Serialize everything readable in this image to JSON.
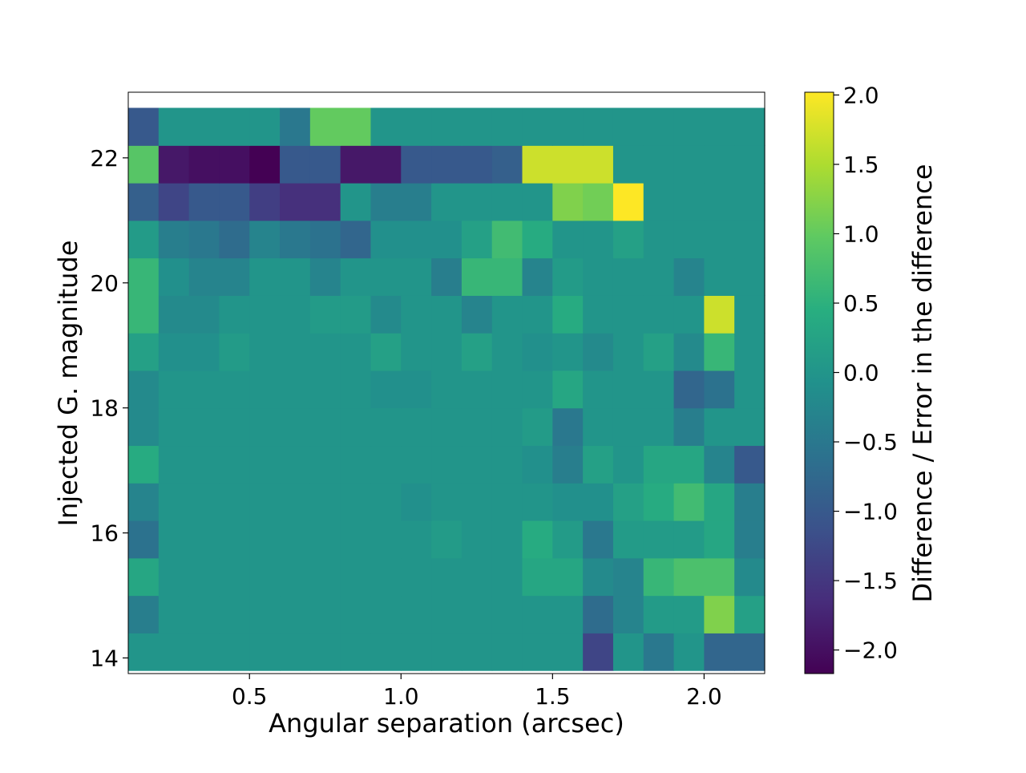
{
  "chart_data": {
    "type": "heatmap",
    "title": "",
    "xlabel": "Angular separation (arcsec)",
    "ylabel": "Injected G. magnitude",
    "colorbar_label": "Difference / Error in the difference",
    "colormap": "viridis",
    "x_edges": [
      0.1,
      0.2,
      0.3,
      0.4,
      0.5,
      0.6,
      0.7,
      0.8,
      0.9,
      1.0,
      1.1,
      1.2,
      1.3,
      1.4,
      1.5,
      1.6,
      1.7,
      1.8,
      1.9,
      2.0,
      2.1,
      2.2
    ],
    "y_edges": [
      13.8,
      14.4,
      15.0,
      15.6,
      16.2,
      16.8,
      17.4,
      18.0,
      18.6,
      19.2,
      19.8,
      20.4,
      21.0,
      21.6,
      22.2,
      22.8
    ],
    "xlim": [
      0.1,
      2.2
    ],
    "ylim": [
      13.75,
      23.05
    ],
    "x_ticks": [
      0.5,
      1.0,
      1.5,
      2.0
    ],
    "x_tick_labels": [
      "0.5",
      "1.0",
      "1.5",
      "2.0"
    ],
    "y_ticks": [
      14,
      16,
      18,
      20,
      22
    ],
    "y_tick_labels": [
      "14",
      "16",
      "18",
      "20",
      "22"
    ],
    "color_range": [
      -2.17,
      2.02
    ],
    "colorbar_ticks": [
      -2.0,
      -1.5,
      -1.0,
      -0.5,
      0.0,
      0.5,
      1.0,
      1.5,
      2.0
    ],
    "colorbar_tick_labels": [
      "−2.0",
      "−1.5",
      "−1.0",
      "−0.5",
      "0.0",
      "0.5",
      "1.0",
      "1.5",
      "2.0"
    ],
    "values": [
      [
        0.0,
        0.0,
        0.0,
        0.0,
        0.0,
        0.0,
        0.0,
        0.0,
        0.0,
        0.0,
        0.0,
        0.0,
        0.0,
        0.0,
        0.0,
        -1.3,
        0.0,
        -0.5,
        0.0,
        -0.8,
        -0.8
      ],
      [
        -0.4,
        0.0,
        0.0,
        0.0,
        0.0,
        0.0,
        0.0,
        0.0,
        0.0,
        0.0,
        0.0,
        0.0,
        0.0,
        0.0,
        0.0,
        -0.7,
        -0.3,
        0.1,
        0.1,
        1.2,
        0.2
      ],
      [
        0.3,
        0.0,
        0.0,
        0.0,
        0.0,
        0.0,
        0.0,
        0.0,
        0.0,
        0.0,
        0.0,
        0.0,
        0.0,
        0.3,
        0.3,
        -0.2,
        -0.3,
        0.6,
        0.8,
        0.8,
        -0.2
      ],
      [
        -0.6,
        0.0,
        0.0,
        0.0,
        0.0,
        0.0,
        0.0,
        0.0,
        0.0,
        0.0,
        0.1,
        0.0,
        0.0,
        0.4,
        0.1,
        -0.5,
        0.1,
        0.1,
        0.1,
        0.3,
        -0.4
      ],
      [
        -0.3,
        0.0,
        0.0,
        0.0,
        0.0,
        0.0,
        0.0,
        0.0,
        0.0,
        -0.1,
        0.0,
        0.0,
        0.0,
        0.0,
        -0.1,
        -0.1,
        0.2,
        0.4,
        0.7,
        0.3,
        -0.4
      ],
      [
        0.4,
        0.0,
        0.0,
        0.0,
        0.0,
        0.0,
        0.0,
        0.0,
        0.0,
        0.0,
        0.0,
        0.0,
        0.0,
        -0.1,
        -0.4,
        0.2,
        0.0,
        0.3,
        0.3,
        -0.3,
        -1.0
      ],
      [
        -0.2,
        0.0,
        0.0,
        0.0,
        0.0,
        0.0,
        0.0,
        0.0,
        0.0,
        0.0,
        0.0,
        0.0,
        0.0,
        0.1,
        -0.5,
        0.0,
        0.0,
        0.0,
        -0.4,
        0.0,
        0.0
      ],
      [
        -0.2,
        0.0,
        0.0,
        0.0,
        0.0,
        0.0,
        0.0,
        0.0,
        -0.1,
        -0.1,
        0.0,
        0.0,
        0.0,
        0.0,
        0.3,
        0.0,
        0.0,
        0.0,
        -0.8,
        -0.6,
        0.0
      ],
      [
        0.2,
        -0.1,
        -0.1,
        0.1,
        0.0,
        0.0,
        0.0,
        0.0,
        0.2,
        0.0,
        0.0,
        0.2,
        0.0,
        -0.1,
        0.0,
        -0.2,
        0.0,
        0.2,
        -0.2,
        0.6,
        0.0
      ],
      [
        0.6,
        -0.2,
        -0.2,
        0.0,
        0.0,
        0.0,
        0.1,
        0.1,
        -0.2,
        0.0,
        0.0,
        -0.3,
        0.0,
        0.0,
        0.4,
        0.0,
        0.0,
        0.0,
        0.0,
        1.7,
        0.0
      ],
      [
        0.6,
        -0.1,
        -0.3,
        -0.3,
        0.0,
        0.0,
        -0.3,
        0.0,
        0.0,
        0.0,
        -0.4,
        0.6,
        0.6,
        -0.3,
        0.1,
        0.0,
        0.0,
        0.0,
        -0.3,
        0.0,
        0.0
      ],
      [
        0.1,
        -0.4,
        -0.5,
        -0.7,
        -0.3,
        -0.5,
        -0.6,
        -0.8,
        -0.1,
        -0.1,
        -0.1,
        0.2,
        0.7,
        0.4,
        0.0,
        0.0,
        0.2,
        0.0,
        0.0,
        0.0,
        0.0
      ],
      [
        -0.9,
        -1.3,
        -1.0,
        -1.0,
        -1.4,
        -1.6,
        -1.6,
        0.0,
        -0.4,
        -0.4,
        0.0,
        0.0,
        0.0,
        0.0,
        1.2,
        1.1,
        2.02,
        0.0,
        0.0,
        0.0,
        0.0
      ],
      [
        0.9,
        -1.9,
        -2.0,
        -2.0,
        -2.17,
        -1.0,
        -1.0,
        -1.9,
        -1.9,
        -1.0,
        -1.0,
        -1.0,
        -0.9,
        1.7,
        1.7,
        1.7,
        0.0,
        0.0,
        0.0,
        0.0,
        0.0
      ],
      [
        -1.0,
        0.0,
        0.0,
        0.0,
        0.0,
        -0.5,
        1.0,
        1.0,
        0.0,
        0.0,
        0.0,
        0.0,
        0.0,
        0.0,
        0.0,
        0.0,
        0.0,
        0.0,
        0.0,
        0.0,
        0.0
      ]
    ]
  }
}
